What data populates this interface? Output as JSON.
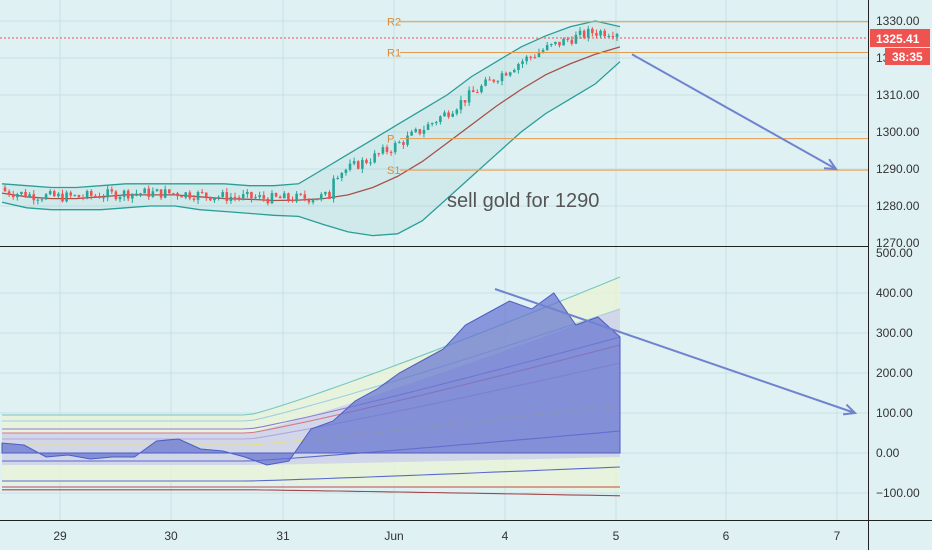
{
  "colors": {
    "background": "#dff1f3",
    "grid": "#c9e1e4",
    "candle_up": "#26a69a",
    "candle_down": "#ef5350",
    "bollinger": "#2a9d96",
    "basis": "#a8514a",
    "pivot_line": "#e89b4c",
    "pivot_label": "#d98a3c",
    "arrow": "#6f83cf",
    "price_tag": "#ef5350",
    "axis_text": "#333333",
    "annotation_text": "#555555",
    "indicator_fill": "#6270d0"
  },
  "chart_data": [
    {
      "type": "candlestick",
      "ylim": [
        1270,
        1332
      ],
      "y_ticks": [
        "1330.00",
        "1320.00",
        "1310.00",
        "1300.00",
        "1290.00",
        "1280.00",
        "1270.00"
      ],
      "pivot_levels": [
        {
          "label": "R2",
          "value": 1329.8
        },
        {
          "label": "R1",
          "value": 1321.5
        },
        {
          "label": "P",
          "value": 1298.2
        },
        {
          "label": "S1",
          "value": 1289.7
        }
      ],
      "last_price": "1325.41",
      "countdown": "38:35",
      "annotation": "sell gold for 1290",
      "projection": {
        "from": 1321.0,
        "to": 1290.0
      },
      "bollinger": {
        "upper": [
          1286,
          1285.5,
          1285,
          1285,
          1285.5,
          1286,
          1286,
          1286,
          1286,
          1286,
          1285.5,
          1285.5,
          1286,
          1290,
          1294,
          1298,
          1302,
          1306,
          1310,
          1315,
          1319,
          1323,
          1326,
          1328.5,
          1330,
          1328.5
        ],
        "basis": [
          1283.5,
          1282.5,
          1282,
          1282,
          1282.5,
          1283,
          1283,
          1283,
          1282.5,
          1282,
          1281.8,
          1281.5,
          1281.6,
          1282,
          1283,
          1285,
          1288,
          1292,
          1297,
          1302,
          1307,
          1311.5,
          1315.5,
          1318.5,
          1321,
          1323
        ],
        "lower": [
          1281,
          1279.5,
          1279,
          1279,
          1279,
          1279.5,
          1280,
          1280,
          1279,
          1278.5,
          1278,
          1277.5,
          1277.2,
          1275,
          1273,
          1272,
          1272.5,
          1276,
          1282,
          1288,
          1294,
          1300,
          1305,
          1309,
          1313,
          1319
        ]
      }
    },
    {
      "type": "area",
      "ylim": [
        -130,
        500
      ],
      "y_ticks": [
        "500.00",
        "400.00",
        "300.00",
        "200.00",
        "100.00",
        "0.00",
        "−100.00"
      ],
      "main_series": [
        25,
        20,
        -10,
        -5,
        -15,
        -10,
        -10,
        30,
        35,
        10,
        5,
        -10,
        -30,
        -20,
        60,
        80,
        130,
        160,
        200,
        230,
        260,
        320,
        350,
        380,
        360,
        400,
        320,
        340,
        290
      ],
      "projection": {
        "from": 410,
        "to": 100
      }
    }
  ],
  "x_axis": {
    "labels": [
      "29",
      "30",
      "31",
      "Jun",
      "4",
      "5",
      "6",
      "7"
    ]
  }
}
